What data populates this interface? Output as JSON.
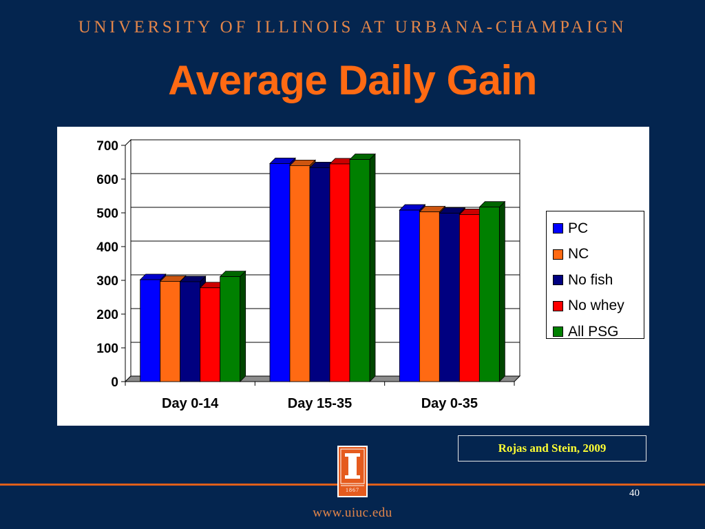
{
  "header": {
    "institution": "UNIVERSITY OF ILLINOIS AT URBANA-CHAMPAIGN",
    "title": "Average Daily Gain"
  },
  "chart_data": {
    "type": "bar",
    "style": "3d-clustered",
    "title": "",
    "xlabel": "",
    "ylabel": "",
    "ylim": [
      0,
      700
    ],
    "yticks": [
      0,
      100,
      200,
      300,
      400,
      500,
      600,
      700
    ],
    "grid": true,
    "legend_position": "right",
    "categories": [
      "Day 0-14",
      "Day 15-35",
      "Day 0-35"
    ],
    "series": [
      {
        "name": "PC",
        "color": "#0000ff",
        "values": [
          302,
          646,
          508
        ]
      },
      {
        "name": "NC",
        "color": "#ff6a13",
        "values": [
          297,
          640,
          503
        ]
      },
      {
        "name": "No fish",
        "color": "#000080",
        "values": [
          296,
          634,
          499
        ]
      },
      {
        "name": "No whey",
        "color": "#ff0000",
        "values": [
          278,
          645,
          495
        ]
      },
      {
        "name": "All PSG",
        "color": "#008000",
        "values": [
          311,
          658,
          517
        ]
      }
    ]
  },
  "citation": "Rojas and Stein, 2009",
  "seal": {
    "year": "1867"
  },
  "footer": {
    "page_number": "40",
    "url": "www.uiuc.edu"
  }
}
